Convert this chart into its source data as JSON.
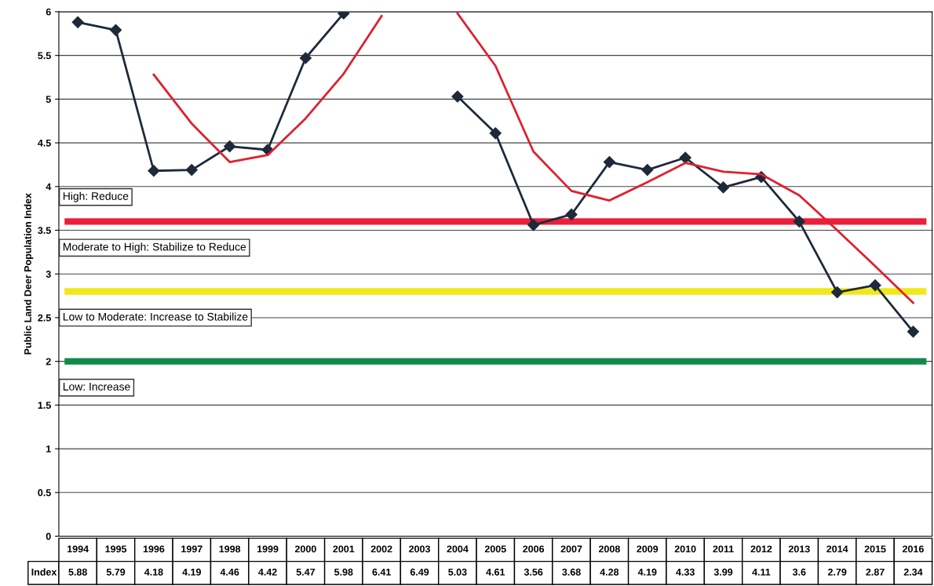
{
  "chart_data": {
    "type": "line",
    "ylabel": "Public Land Deer Population Index",
    "categories": [
      "1994",
      "1995",
      "1996",
      "1997",
      "1998",
      "1999",
      "2000",
      "2001",
      "2002",
      "2003",
      "2004",
      "2005",
      "2006",
      "2007",
      "2008",
      "2009",
      "2010",
      "2011",
      "2012",
      "2013",
      "2014",
      "2015",
      "2016"
    ],
    "series": [
      {
        "name": "Index",
        "color": "#1e2a3a",
        "marker": "diamond",
        "values": [
          5.88,
          5.79,
          4.18,
          4.19,
          4.46,
          4.42,
          5.47,
          5.98,
          null,
          null,
          5.03,
          4.61,
          3.56,
          3.68,
          4.28,
          4.19,
          4.33,
          3.99,
          4.11,
          3.6,
          2.79,
          2.87,
          2.34
        ],
        "value_labels": [
          "5.88",
          "5.79",
          "4.18",
          "4.19",
          "4.46",
          "4.42",
          "5.47",
          "5.98",
          "6.41",
          "6.49",
          "5.03",
          "4.61",
          "3.56",
          "3.68",
          "4.28",
          "4.19",
          "4.33",
          "3.99",
          "4.11",
          "3.6",
          "2.79",
          "2.87",
          "2.34"
        ]
      },
      {
        "color": "#e0202e",
        "marker": "none",
        "values": [
          null,
          null,
          5.28,
          4.72,
          4.28,
          4.36,
          4.78,
          5.29,
          5.95,
          null,
          5.98,
          5.38,
          4.4,
          3.95,
          3.84,
          4.05,
          4.27,
          4.17,
          4.14,
          3.9,
          3.5,
          3.09,
          2.67
        ]
      }
    ],
    "ylim": [
      0,
      6
    ],
    "yticks": [
      0,
      0.5,
      1,
      1.5,
      2,
      2.5,
      3,
      3.5,
      4,
      4.5,
      5,
      5.5,
      6
    ],
    "grid": "y",
    "legend": false,
    "ref_lines": [
      {
        "axis": "y",
        "value": 3.6,
        "color": "#e8203c"
      },
      {
        "axis": "y",
        "value": 2.8,
        "color": "#f0e81a"
      },
      {
        "axis": "y",
        "value": 2.0,
        "color": "#138a4c"
      }
    ],
    "annotations": [
      "High: Reduce",
      "Moderate to High: Stabilize to Reduce",
      "Low to Moderate: Increase to Stabilize",
      "Low: Increase"
    ]
  }
}
